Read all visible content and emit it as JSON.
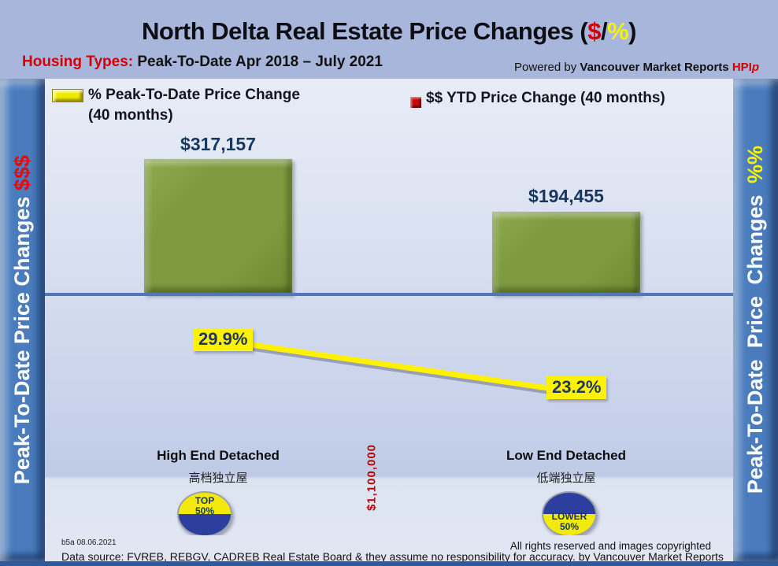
{
  "header": {
    "title": {
      "pre": "North Delta Real Estate Price Changes (",
      "dollar": "$",
      "slash": "/",
      "percent": "%",
      "post": ")"
    },
    "subtitle_label": "Housing Types:",
    "subtitle_text": " Peak-To-Date Apr 2018 – July 2021",
    "powered_prefix": "Powered by ",
    "powered_brand": "Vancouver Market Reports ",
    "powered_hpi": "HPI",
    "powered_hpi_p": "p"
  },
  "sidebar_left": {
    "text": "Peak-To-Date Price Changes ",
    "suffix": "$$$"
  },
  "sidebar_right": {
    "text": "Peak-To-Date Price Changes ",
    "suffix": "%%"
  },
  "legend": {
    "items": [
      {
        "icon": "yellow-bar-icon",
        "color": "#f5f200",
        "label": "% Peak-To-Date Price Change (40 months)"
      },
      {
        "icon": "red-square-icon",
        "color": "#c00b0b",
        "label": "$$ YTD Price Change (40 months)"
      }
    ]
  },
  "chart_data": {
    "type": "combo",
    "title": "North Delta Real Estate Price Changes ($/%)",
    "subtitle": "Housing Types: Peak-To-Date Apr 2018 – July 2021",
    "categories": [
      "High End Detached",
      "Low End Detached"
    ],
    "categories_secondary": [
      "高档独立屋",
      "低端独立屋"
    ],
    "series": [
      {
        "name": "$$ YTD Price Change (40 months)",
        "type": "bar",
        "values": [
          317157,
          194455
        ],
        "labels": [
          "$317,157",
          "$194,455"
        ],
        "color": "#7d9a3f"
      },
      {
        "name": "% Peak-To-Date Price Change (40 months)",
        "type": "line",
        "values": [
          29.9,
          23.2
        ],
        "labels": [
          "29.9%",
          "23.2%"
        ],
        "color": "#fff200"
      }
    ],
    "left_axis_label": "Peak-To-Date Price Changes $$$",
    "right_axis_label": "Peak-To-Date Price Changes %%",
    "annotations": [
      "$1,100,000",
      "TOP 50%",
      "LOWER 50%"
    ],
    "legend_position": "top",
    "grid": false
  },
  "markers": {
    "top": {
      "line1": "TOP",
      "line2": "50%"
    },
    "lower": {
      "line1": "LOWER",
      "line2": "50%"
    }
  },
  "annotations": {
    "threshold": "$1,100,000"
  },
  "footer": {
    "version": "b5a 08.06.2021",
    "rights": "All rights reserved and  images copyrighted",
    "source": "Data source: FVREB, REBGV, CADREB Real Estate Board & they assume no responsibility for accuracy. by Vancouver Market Reports"
  },
  "colors": {
    "background": "#a8b6db",
    "pillar_blue": "#4a7cbd",
    "bar_green": "#7d9a3f",
    "line_yellow": "#fff200",
    "value_navy": "#17375e",
    "accent_red": "#d40000",
    "axis_blue": "#4c7ab6"
  }
}
